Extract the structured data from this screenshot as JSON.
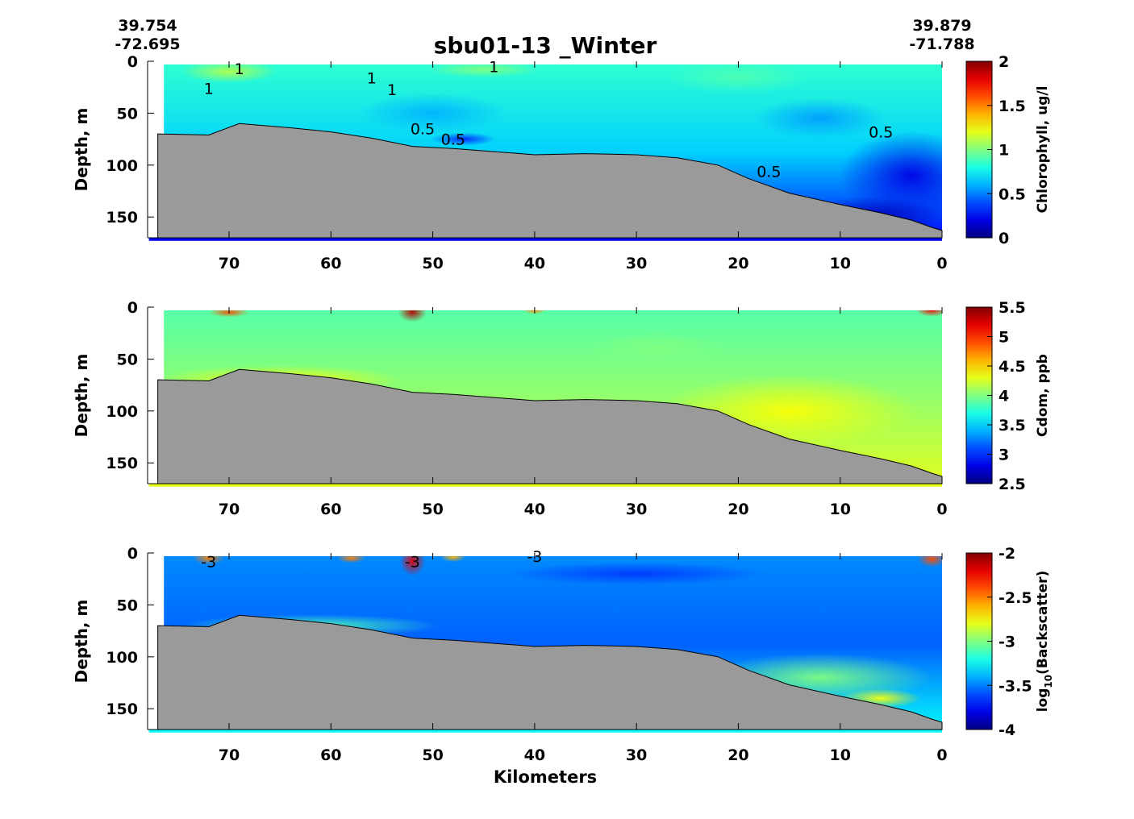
{
  "title": "sbu01-13 _Winter",
  "endpoints": {
    "left": {
      "lat": "39.754",
      "lon": "-72.695"
    },
    "right": {
      "lat": "39.879",
      "lon": "-71.788"
    }
  },
  "xlabel": "Kilometers",
  "chart_data": [
    {
      "type": "heatmap",
      "name": "chlorophyll",
      "ylabel": "Depth, m",
      "colorbar_label": "Chlorophyll, ug/l",
      "xlim": [
        78,
        0
      ],
      "ylim": [
        170,
        0
      ],
      "x_ticks": [
        70,
        60,
        50,
        40,
        30,
        20,
        10,
        0
      ],
      "y_ticks": [
        0,
        50,
        100,
        150
      ],
      "clim": [
        0,
        2
      ],
      "colorbar_ticks": [
        "0",
        "0.5",
        "1",
        "1.5",
        "2"
      ],
      "colormap": "jet",
      "contour_labels": [
        {
          "text": "1",
          "x": 69,
          "y": 7
        },
        {
          "text": "1",
          "x": 56,
          "y": 16
        },
        {
          "text": "1",
          "x": 54,
          "y": 27
        },
        {
          "text": "1",
          "x": 44,
          "y": 5
        },
        {
          "text": "1",
          "x": 72,
          "y": 26
        },
        {
          "text": "0.5",
          "x": 51,
          "y": 65
        },
        {
          "text": "0.5",
          "x": 48,
          "y": 75
        },
        {
          "text": "0.5",
          "x": 17,
          "y": 106
        },
        {
          "text": "0.5",
          "x": 6,
          "y": 68
        }
      ],
      "bottom_depth": {
        "x": [
          77,
          72,
          69,
          64,
          60,
          56,
          52,
          48,
          44,
          40,
          35,
          30,
          26,
          22,
          19,
          15,
          10,
          6,
          3,
          1,
          0
        ],
        "depth": [
          70,
          71,
          60,
          64,
          68,
          74,
          82,
          84,
          87,
          90,
          89,
          90,
          93,
          100,
          113,
          127,
          138,
          146,
          153,
          160,
          163
        ]
      }
    },
    {
      "type": "heatmap",
      "name": "cdom",
      "ylabel": "Depth, m",
      "colorbar_label": "Cdom, ppb",
      "xlim": [
        78,
        0
      ],
      "ylim": [
        170,
        0
      ],
      "x_ticks": [
        70,
        60,
        50,
        40,
        30,
        20,
        10,
        0
      ],
      "y_ticks": [
        0,
        50,
        100,
        150
      ],
      "clim": [
        2.5,
        5.5
      ],
      "colorbar_ticks": [
        "2.5",
        "3",
        "3.5",
        "4",
        "4.5",
        "5",
        "5.5"
      ],
      "colormap": "jet",
      "bottom_depth": {
        "x": [
          77,
          72,
          69,
          64,
          60,
          56,
          52,
          48,
          44,
          40,
          35,
          30,
          26,
          22,
          19,
          15,
          10,
          6,
          3,
          1,
          0
        ],
        "depth": [
          70,
          71,
          60,
          64,
          68,
          74,
          82,
          84,
          87,
          90,
          89,
          90,
          93,
          100,
          113,
          127,
          138,
          146,
          153,
          160,
          163
        ]
      }
    },
    {
      "type": "heatmap",
      "name": "backscatter",
      "ylabel": "Depth, m",
      "colorbar_label": "log10(Backscatter)",
      "xlim": [
        78,
        0
      ],
      "ylim": [
        170,
        0
      ],
      "x_ticks": [
        70,
        60,
        50,
        40,
        30,
        20,
        10,
        0
      ],
      "y_ticks": [
        0,
        50,
        100,
        150
      ],
      "clim": [
        -4,
        -2
      ],
      "colorbar_ticks": [
        "-4",
        "-3.5",
        "-3",
        "-2.5",
        "-2"
      ],
      "colormap": "jet",
      "contour_labels": [
        {
          "text": "-3",
          "x": 72,
          "y": 8
        },
        {
          "text": "-3",
          "x": 52,
          "y": 8
        },
        {
          "text": "-3",
          "x": 40,
          "y": 3
        }
      ],
      "bottom_depth": {
        "x": [
          77,
          72,
          69,
          64,
          60,
          56,
          52,
          48,
          44,
          40,
          35,
          30,
          26,
          22,
          19,
          15,
          10,
          6,
          3,
          1,
          0
        ],
        "depth": [
          70,
          71,
          60,
          64,
          68,
          74,
          82,
          84,
          87,
          90,
          89,
          90,
          93,
          100,
          113,
          127,
          138,
          146,
          153,
          160,
          163
        ]
      }
    }
  ],
  "colors": {
    "seafloor": "#9a9a9a",
    "axis": "#000000",
    "background": "#ffffff"
  }
}
